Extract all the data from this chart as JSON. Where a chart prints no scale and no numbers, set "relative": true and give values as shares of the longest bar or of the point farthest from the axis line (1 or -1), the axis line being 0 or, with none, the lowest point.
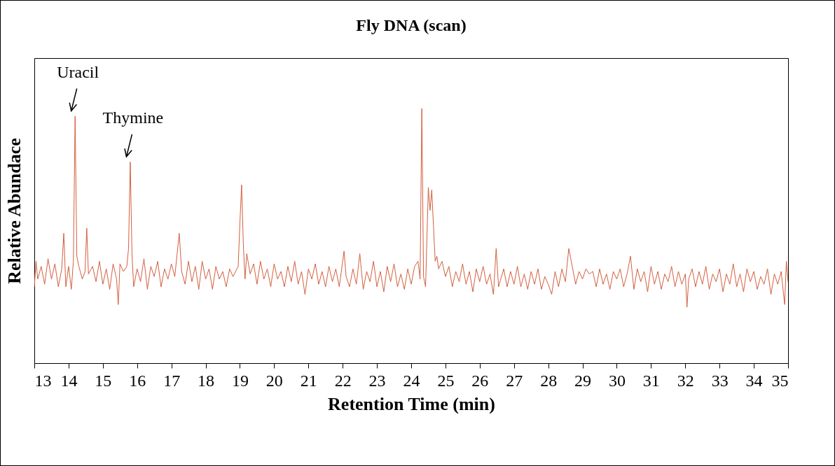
{
  "chart_data": {
    "type": "line",
    "title": "Fly DNA (scan)",
    "xlabel": "Retention Time (min)",
    "ylabel": "Relative Abundace",
    "relative": true,
    "xlim": [
      13,
      35
    ],
    "xticks": [
      13,
      14,
      15,
      16,
      17,
      18,
      19,
      20,
      21,
      22,
      23,
      24,
      25,
      26,
      27,
      28,
      29,
      30,
      31,
      32,
      33,
      34,
      35
    ],
    "grid": false,
    "annotations": [
      {
        "text": "Uracil",
        "x": 14.19,
        "y": 0.97
      },
      {
        "text": "Thymine",
        "x": 15.8,
        "y": 0.79
      }
    ],
    "x": [
      13.0,
      13.05,
      13.1,
      13.2,
      13.3,
      13.4,
      13.5,
      13.6,
      13.7,
      13.8,
      13.86,
      13.92,
      14.0,
      14.08,
      14.14,
      14.19,
      14.24,
      14.3,
      14.4,
      14.48,
      14.53,
      14.58,
      14.7,
      14.8,
      14.9,
      15.0,
      15.1,
      15.2,
      15.3,
      15.4,
      15.45,
      15.5,
      15.6,
      15.7,
      15.75,
      15.8,
      15.85,
      15.9,
      16.0,
      16.1,
      16.2,
      16.3,
      16.4,
      16.5,
      16.6,
      16.7,
      16.8,
      16.9,
      17.0,
      17.1,
      17.23,
      17.3,
      17.4,
      17.5,
      17.6,
      17.7,
      17.8,
      17.9,
      18.0,
      18.1,
      18.2,
      18.3,
      18.4,
      18.5,
      18.6,
      18.7,
      18.8,
      18.95,
      19.0,
      19.05,
      19.1,
      19.15,
      19.2,
      19.3,
      19.4,
      19.5,
      19.6,
      19.7,
      19.8,
      19.9,
      20.0,
      20.1,
      20.2,
      20.3,
      20.4,
      20.5,
      20.6,
      20.7,
      20.8,
      20.9,
      21.0,
      21.1,
      21.2,
      21.3,
      21.4,
      21.5,
      21.6,
      21.7,
      21.8,
      21.9,
      22.04,
      22.1,
      22.2,
      22.3,
      22.4,
      22.5,
      22.6,
      22.7,
      22.8,
      22.9,
      23.0,
      23.1,
      23.2,
      23.3,
      23.4,
      23.5,
      23.6,
      23.7,
      23.8,
      23.9,
      24.0,
      24.1,
      24.2,
      24.26,
      24.31,
      24.36,
      24.42,
      24.5,
      24.55,
      24.6,
      24.65,
      24.7,
      24.75,
      24.8,
      24.9,
      25.0,
      25.1,
      25.2,
      25.3,
      25.4,
      25.5,
      25.6,
      25.7,
      25.8,
      25.9,
      26.0,
      26.1,
      26.2,
      26.3,
      26.4,
      26.48,
      26.55,
      26.7,
      26.8,
      26.9,
      27.0,
      27.1,
      27.2,
      27.3,
      27.4,
      27.5,
      27.6,
      27.7,
      27.8,
      27.9,
      28.0,
      28.1,
      28.2,
      28.3,
      28.4,
      28.5,
      28.6,
      28.7,
      28.8,
      28.9,
      29.0,
      29.1,
      29.2,
      29.3,
      29.4,
      29.5,
      29.6,
      29.7,
      29.8,
      29.9,
      30.0,
      30.1,
      30.2,
      30.3,
      30.4,
      30.5,
      30.6,
      30.7,
      30.8,
      30.9,
      31.0,
      31.1,
      31.2,
      31.3,
      31.4,
      31.5,
      31.6,
      31.7,
      31.8,
      31.9,
      32.0,
      32.05,
      32.1,
      32.2,
      32.3,
      32.4,
      32.5,
      32.6,
      32.7,
      32.8,
      32.9,
      33.0,
      33.1,
      33.2,
      33.3,
      33.4,
      33.5,
      33.6,
      33.7,
      33.8,
      33.9,
      34.0,
      34.1,
      34.2,
      34.3,
      34.4,
      34.5,
      34.6,
      34.7,
      34.8,
      34.9,
      34.95,
      35.0
    ],
    "series": [
      {
        "color": "#d35f3f",
        "values": [
          0.3,
          0.4,
          0.33,
          0.38,
          0.31,
          0.41,
          0.33,
          0.39,
          0.3,
          0.37,
          0.51,
          0.3,
          0.38,
          0.29,
          0.4,
          0.97,
          0.42,
          0.38,
          0.33,
          0.36,
          0.53,
          0.35,
          0.38,
          0.32,
          0.4,
          0.31,
          0.37,
          0.29,
          0.39,
          0.33,
          0.23,
          0.39,
          0.36,
          0.38,
          0.45,
          0.79,
          0.43,
          0.3,
          0.37,
          0.32,
          0.41,
          0.29,
          0.38,
          0.34,
          0.4,
          0.3,
          0.37,
          0.33,
          0.39,
          0.34,
          0.51,
          0.36,
          0.31,
          0.4,
          0.32,
          0.38,
          0.29,
          0.4,
          0.33,
          0.37,
          0.29,
          0.38,
          0.33,
          0.36,
          0.3,
          0.37,
          0.34,
          0.38,
          0.55,
          0.7,
          0.47,
          0.33,
          0.43,
          0.35,
          0.39,
          0.31,
          0.4,
          0.33,
          0.37,
          0.3,
          0.39,
          0.33,
          0.36,
          0.3,
          0.38,
          0.32,
          0.4,
          0.31,
          0.36,
          0.27,
          0.37,
          0.33,
          0.39,
          0.31,
          0.36,
          0.3,
          0.38,
          0.32,
          0.37,
          0.3,
          0.44,
          0.34,
          0.3,
          0.37,
          0.31,
          0.43,
          0.29,
          0.36,
          0.32,
          0.4,
          0.3,
          0.36,
          0.28,
          0.38,
          0.32,
          0.39,
          0.3,
          0.35,
          0.29,
          0.37,
          0.31,
          0.38,
          0.4,
          0.33,
          1.0,
          0.34,
          0.3,
          0.69,
          0.6,
          0.68,
          0.54,
          0.4,
          0.42,
          0.37,
          0.4,
          0.34,
          0.38,
          0.3,
          0.36,
          0.32,
          0.39,
          0.31,
          0.36,
          0.28,
          0.37,
          0.32,
          0.38,
          0.31,
          0.35,
          0.27,
          0.45,
          0.3,
          0.37,
          0.3,
          0.36,
          0.31,
          0.38,
          0.3,
          0.35,
          0.29,
          0.36,
          0.31,
          0.37,
          0.29,
          0.34,
          0.31,
          0.27,
          0.36,
          0.3,
          0.37,
          0.32,
          0.45,
          0.38,
          0.31,
          0.36,
          0.33,
          0.37,
          0.35,
          0.36,
          0.3,
          0.37,
          0.31,
          0.35,
          0.29,
          0.36,
          0.33,
          0.37,
          0.3,
          0.35,
          0.42,
          0.29,
          0.37,
          0.32,
          0.36,
          0.28,
          0.38,
          0.31,
          0.36,
          0.29,
          0.35,
          0.32,
          0.38,
          0.3,
          0.36,
          0.31,
          0.35,
          0.22,
          0.33,
          0.37,
          0.3,
          0.36,
          0.31,
          0.38,
          0.29,
          0.35,
          0.32,
          0.37,
          0.28,
          0.35,
          0.31,
          0.39,
          0.3,
          0.35,
          0.28,
          0.37,
          0.32,
          0.36,
          0.29,
          0.34,
          0.31,
          0.37,
          0.27,
          0.35,
          0.31,
          0.36,
          0.23,
          0.4,
          0.32
        ]
      }
    ]
  }
}
